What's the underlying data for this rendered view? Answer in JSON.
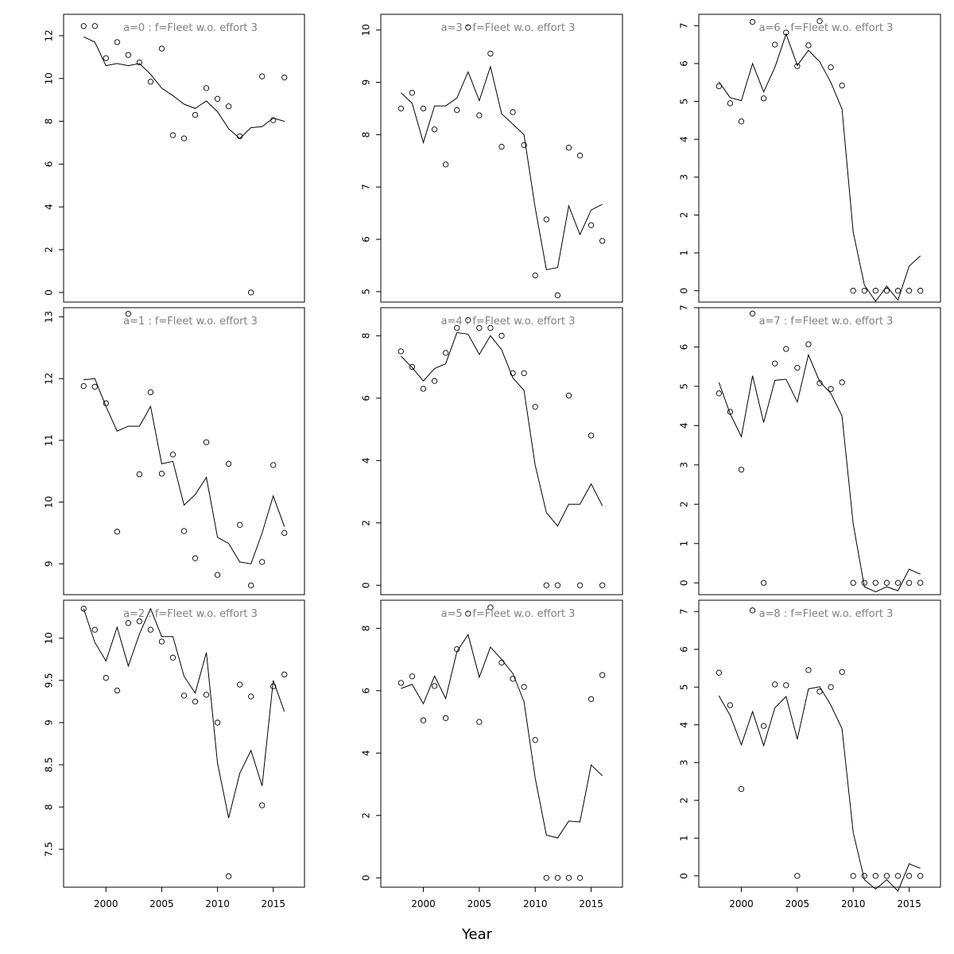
{
  "chart_data": {
    "type": "line",
    "xlabel": "Year",
    "x": [
      1998,
      1999,
      2000,
      2001,
      2002,
      2003,
      2004,
      2005,
      2006,
      2007,
      2008,
      2009,
      2010,
      2011,
      2012,
      2013,
      2014,
      2015,
      2016
    ],
    "x_ticks": [
      2000,
      2005,
      2010,
      2015
    ],
    "x_ticks_shown_on_rows": [
      2
    ],
    "xlim": [
      1996.2,
      2017.8
    ],
    "layout": "3x3 grid, column-major (a=0..2 left column, a=3..5 middle, a=6..8 right)",
    "panels": [
      {
        "title": "a=0  :  f=Fleet w.o. effort 3",
        "ylim": [
          -0.45,
          13.0
        ],
        "yticks": [
          0,
          2,
          4,
          6,
          8,
          10,
          12
        ],
        "fitted": [
          11.95,
          11.7,
          10.6,
          10.7,
          10.6,
          10.7,
          10.2,
          9.55,
          9.2,
          8.8,
          8.6,
          8.95,
          8.45,
          7.65,
          7.2,
          7.7,
          7.75,
          8.15,
          8.0
        ],
        "observed": [
          12.45,
          12.45,
          10.95,
          11.7,
          11.1,
          10.75,
          9.85,
          11.4,
          7.35,
          7.2,
          8.3,
          9.55,
          9.05,
          8.7,
          7.3,
          0.0,
          10.1,
          8.05,
          10.05
        ]
      },
      {
        "title": "a=1  :  f=Fleet w.o. effort 3",
        "ylim": [
          8.5,
          13.15
        ],
        "yticks": [
          9,
          10,
          11,
          12,
          13
        ],
        "fitted": [
          11.98,
          12.0,
          11.55,
          11.15,
          11.23,
          11.23,
          11.55,
          10.62,
          10.66,
          9.95,
          10.12,
          10.4,
          9.43,
          9.33,
          9.03,
          9.0,
          9.5,
          10.1,
          9.6
        ],
        "observed": [
          11.88,
          11.87,
          11.6,
          9.52,
          13.05,
          10.45,
          11.78,
          10.46,
          10.77,
          9.53,
          9.09,
          10.97,
          8.82,
          10.62,
          9.63,
          8.65,
          9.03,
          10.6,
          9.5
        ]
      },
      {
        "title": "a=2  :  f=Fleet w.o. effort 3",
        "ylim": [
          7.05,
          10.45
        ],
        "yticks": [
          7.5,
          8.0,
          8.5,
          9.0,
          9.5,
          10.0
        ],
        "fitted": [
          10.35,
          9.95,
          9.73,
          10.13,
          9.67,
          10.05,
          10.35,
          10.02,
          10.02,
          9.55,
          9.35,
          9.83,
          8.52,
          7.87,
          8.4,
          8.67,
          8.25,
          9.5,
          9.13
        ],
        "observed": [
          10.35,
          10.1,
          9.53,
          9.38,
          10.18,
          10.2,
          10.1,
          9.96,
          9.77,
          9.32,
          9.25,
          9.33,
          9.0,
          7.18,
          9.45,
          9.31,
          8.02,
          9.43,
          9.57
        ]
      },
      {
        "title": "a=3  :  f=Fleet w.o. effort 3",
        "ylim": [
          4.8,
          10.3
        ],
        "yticks": [
          5,
          6,
          7,
          8,
          9,
          10
        ],
        "fitted": [
          8.8,
          8.6,
          7.85,
          8.55,
          8.55,
          8.7,
          9.2,
          8.65,
          9.3,
          8.4,
          8.2,
          8.0,
          6.6,
          5.42,
          5.46,
          6.64,
          6.09,
          6.56,
          6.67
        ],
        "observed": [
          8.5,
          8.8,
          8.5,
          8.1,
          7.43,
          8.47,
          10.05,
          8.37,
          9.55,
          7.77,
          8.43,
          7.8,
          5.31,
          6.38,
          4.93,
          7.75,
          7.6,
          6.27,
          5.97
        ]
      },
      {
        "title": "a=4  :  f=Fleet w.o. effort 3",
        "ylim": [
          -0.3,
          8.9
        ],
        "yticks": [
          0,
          2,
          4,
          6,
          8
        ],
        "fitted": [
          7.35,
          6.98,
          6.55,
          6.95,
          7.1,
          8.1,
          8.05,
          7.4,
          8.0,
          7.55,
          6.65,
          6.25,
          3.85,
          2.33,
          1.9,
          2.6,
          2.6,
          3.25,
          2.55
        ],
        "observed": [
          7.5,
          7.0,
          6.3,
          6.55,
          7.45,
          8.25,
          8.5,
          8.25,
          8.25,
          8.0,
          6.8,
          6.8,
          5.72,
          0.0,
          0.0,
          6.08,
          0.0,
          4.8,
          0.0
        ]
      },
      {
        "title": "a=5  :  f=Fleet w.o. effort 3",
        "ylim": [
          -0.3,
          8.9
        ],
        "yticks": [
          0,
          2,
          4,
          6,
          8
        ],
        "fitted": [
          6.07,
          6.2,
          5.58,
          6.47,
          5.75,
          7.25,
          7.8,
          6.43,
          7.4,
          7.0,
          6.55,
          5.65,
          3.2,
          1.37,
          1.28,
          1.82,
          1.79,
          3.62,
          3.27
        ],
        "observed": [
          6.25,
          6.46,
          5.05,
          6.15,
          5.12,
          7.33,
          8.47,
          5.0,
          8.67,
          6.9,
          6.38,
          6.12,
          4.42,
          0.0,
          0.0,
          0.0,
          0.0,
          5.73,
          6.5
        ]
      },
      {
        "title": "a=6  :  f=Fleet w.o. effort 3",
        "ylim": [
          -0.3,
          7.3
        ],
        "yticks": [
          0,
          1,
          2,
          3,
          4,
          5,
          6,
          7
        ],
        "fitted": [
          5.52,
          5.1,
          5.02,
          6.0,
          5.25,
          5.9,
          6.78,
          5.95,
          6.35,
          6.05,
          5.5,
          4.8,
          1.55,
          0.15,
          -0.28,
          0.12,
          -0.25,
          0.65,
          0.92
        ],
        "observed": [
          5.4,
          4.95,
          4.47,
          7.1,
          5.08,
          6.5,
          6.82,
          5.93,
          6.48,
          7.12,
          5.9,
          5.42,
          0.0,
          0.0,
          0.0,
          0.0,
          0.0,
          0.0,
          0.0
        ]
      },
      {
        "title": "a=7  :  f=Fleet w.o. effort 3",
        "ylim": [
          -0.3,
          7.0
        ],
        "yticks": [
          0,
          1,
          2,
          3,
          4,
          5,
          6,
          7
        ],
        "fitted": [
          5.1,
          4.3,
          3.72,
          5.27,
          4.08,
          5.15,
          5.18,
          4.6,
          5.8,
          5.12,
          4.82,
          4.25,
          1.5,
          -0.1,
          -0.23,
          -0.1,
          -0.2,
          0.35,
          0.22
        ],
        "observed": [
          4.82,
          4.35,
          2.88,
          6.85,
          0.0,
          5.58,
          5.95,
          5.47,
          6.07,
          5.08,
          4.93,
          5.1,
          0.0,
          0.0,
          0.0,
          0.0,
          0.0,
          0.0,
          0.0
        ]
      },
      {
        "title": "a=8  :  f=Fleet w.o. effort 3",
        "ylim": [
          -0.3,
          7.3
        ],
        "yticks": [
          0,
          1,
          2,
          3,
          4,
          5,
          6,
          7
        ],
        "fitted": [
          4.77,
          4.25,
          3.47,
          4.35,
          3.45,
          4.45,
          4.75,
          3.62,
          4.95,
          5.01,
          4.52,
          3.9,
          1.15,
          -0.1,
          -0.35,
          -0.1,
          -0.4,
          0.32,
          0.2
        ],
        "observed": [
          5.38,
          4.52,
          2.3,
          7.03,
          3.97,
          5.07,
          5.05,
          0.0,
          5.45,
          4.88,
          5.0,
          5.4,
          0.0,
          0.0,
          0.0,
          0.0,
          0.0,
          0.0,
          0.0
        ]
      }
    ]
  }
}
